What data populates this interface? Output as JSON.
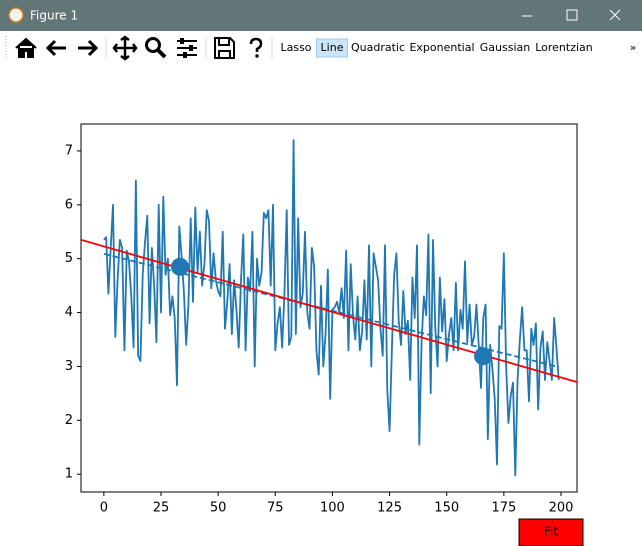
{
  "window": {
    "title": "Figure 1"
  },
  "toolbar": {
    "buttons": [
      "Lasso",
      "Line",
      "Quadratic",
      "Exponential",
      "Gaussian",
      "Lorentzian"
    ],
    "selected_index": 1,
    "overflow": "»"
  },
  "fit_button": {
    "label": "Fit",
    "color": "#ff0000"
  },
  "chart_data": {
    "type": "line",
    "xlim": [
      -10,
      207
    ],
    "ylim": [
      0.67,
      7.5
    ],
    "xticks": [
      0,
      25,
      50,
      75,
      100,
      125,
      150,
      175,
      200
    ],
    "yticks": [
      1,
      2,
      3,
      4,
      5,
      6,
      7
    ],
    "grid": false,
    "series": [
      {
        "color": "#1f77b4",
        "style": "solid",
        "x": [
          0,
          1,
          2,
          3,
          4,
          5,
          6,
          7,
          8,
          9,
          10,
          11,
          12,
          13,
          14,
          15,
          16,
          17,
          18,
          19,
          20,
          21,
          22,
          23,
          24,
          25,
          26,
          27,
          28,
          29,
          30,
          31,
          32,
          33,
          34,
          35,
          36,
          37,
          38,
          39,
          40,
          41,
          42,
          43,
          44,
          45,
          46,
          47,
          48,
          49,
          50,
          51,
          52,
          53,
          54,
          55,
          56,
          57,
          58,
          59,
          60,
          61,
          62,
          63,
          64,
          65,
          66,
          67,
          68,
          69,
          70,
          71,
          72,
          73,
          74,
          75,
          76,
          77,
          78,
          79,
          80,
          81,
          82,
          83,
          84,
          85,
          86,
          87,
          88,
          89,
          90,
          91,
          92,
          93,
          94,
          95,
          96,
          97,
          98,
          99,
          100,
          101,
          102,
          103,
          104,
          105,
          106,
          107,
          108,
          109,
          110,
          111,
          112,
          113,
          114,
          115,
          116,
          117,
          118,
          119,
          120,
          121,
          122,
          123,
          124,
          125,
          126,
          127,
          128,
          129,
          130,
          131,
          132,
          133,
          134,
          135,
          136,
          137,
          138,
          139,
          140,
          141,
          142,
          143,
          144,
          145,
          146,
          147,
          148,
          149,
          150,
          151,
          152,
          153,
          154,
          155,
          156,
          157,
          158,
          159,
          160,
          161,
          162,
          163,
          164,
          165,
          166,
          167,
          168,
          169,
          170,
          171,
          172,
          173,
          174,
          175,
          176,
          177,
          178,
          179,
          180,
          181,
          182,
          183,
          184,
          185,
          186,
          187,
          188,
          189,
          190,
          191,
          192,
          193,
          194,
          195,
          196,
          197,
          198,
          199
        ],
        "values": [
          5.35,
          5.4,
          4.35,
          5.2,
          6.0,
          3.55,
          4.6,
          5.35,
          5.2,
          3.3,
          5.15,
          4.95,
          4.3,
          3.35,
          6.45,
          3.2,
          3.1,
          4.7,
          5.3,
          5.8,
          3.8,
          5.2,
          4.5,
          3.45,
          6.0,
          4.0,
          6.15,
          4.7,
          5.0,
          3.95,
          4.3,
          3.9,
          2.65,
          5.6,
          5.05,
          4.4,
          3.4,
          4.15,
          5.75,
          4.2,
          5.95,
          4.75,
          5.5,
          4.5,
          4.9,
          5.9,
          5.7,
          4.45,
          5.1,
          4.6,
          4.4,
          4.3,
          5.5,
          3.7,
          4.2,
          4.9,
          3.6,
          4.6,
          4.05,
          3.35,
          4.6,
          5.45,
          3.3,
          4.65,
          4.4,
          5.5,
          3.0,
          5.0,
          4.5,
          4.75,
          5.85,
          5.75,
          5.9,
          4.5,
          6.0,
          3.3,
          3.8,
          4.1,
          3.35,
          4.35,
          5.9,
          3.4,
          3.55,
          7.2,
          3.6,
          5.75,
          4.1,
          4.35,
          5.5,
          4.0,
          3.7,
          5.2,
          4.85,
          3.3,
          2.85,
          4.5,
          3.0,
          3.6,
          4.8,
          2.4,
          4.05,
          4.1,
          4.2,
          4.0,
          4.45,
          3.9,
          5.15,
          3.3,
          4.9,
          3.95,
          3.5,
          4.3,
          3.3,
          3.65,
          4.6,
          3.5,
          5.25,
          3.0,
          5.1,
          4.85,
          4.6,
          3.7,
          3.2,
          5.25,
          2.55,
          1.8,
          3.3,
          4.7,
          5.1,
          3.85,
          3.4,
          4.4,
          3.6,
          3.85,
          2.75,
          4.65,
          3.9,
          5.25,
          1.55,
          3.45,
          4.3,
          3.95,
          5.45,
          2.5,
          5.35,
          3.7,
          3.0,
          4.65,
          3.65,
          4.25,
          3.1,
          3.6,
          3.9,
          3.3,
          4.55,
          3.3,
          4.05,
          3.7,
          4.95,
          3.45,
          4.15,
          3.4,
          3.55,
          4.15,
          3.4,
          2.6,
          3.9,
          4.15,
          1.65,
          3.4,
          2.95,
          2.4,
          1.18,
          3.75,
          3.7,
          5.1,
          3.0,
          1.95,
          2.45,
          2.7,
          0.98,
          2.75,
          3.5,
          4.1,
          3.3,
          3.3,
          2.35,
          3.7,
          3.4,
          3.8,
          2.2,
          3.35,
          3.65,
          2.75,
          3.45,
          3.1,
          2.75,
          3.9,
          3.35,
          2.75
        ]
      },
      {
        "color": "#1f77b4",
        "style": "dashed",
        "x": [
          0,
          199
        ],
        "values": [
          5.09,
          2.99
        ]
      },
      {
        "color": "#ff0000",
        "style": "solid",
        "x": [
          -10,
          207
        ],
        "values": [
          5.35,
          2.71
        ]
      },
      {
        "color": "#1f77b4",
        "style": "markers",
        "x": [
          33.3,
          165.9
        ],
        "values": [
          4.85,
          3.19
        ]
      }
    ]
  }
}
